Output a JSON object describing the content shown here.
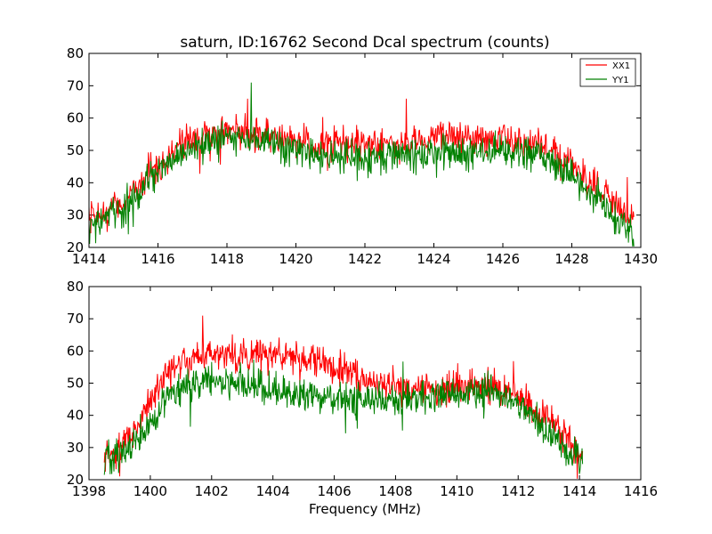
{
  "figure_title": "saturn, ID:16762 Second Dcal spectrum (counts)",
  "colors": {
    "XX1": "#ff0000",
    "YY1": "#008000"
  },
  "chart_data": [
    {
      "type": "line",
      "title": "saturn, ID:16762 Second Dcal spectrum (counts)",
      "xlabel": "",
      "ylabel": "",
      "xlim": [
        1414,
        1430
      ],
      "ylim": [
        20,
        80
      ],
      "xticks": [
        "1414",
        "1416",
        "1418",
        "1420",
        "1422",
        "1424",
        "1426",
        "1428",
        "1430"
      ],
      "yticks": [
        "20",
        "30",
        "40",
        "50",
        "60",
        "70",
        "80"
      ],
      "grid": false,
      "legend": {
        "position": "top-right",
        "entries": [
          "XX1",
          "YY1"
        ]
      },
      "series": [
        {
          "name": "XX1",
          "x_range": [
            1414.0,
            1429.8
          ],
          "mean_profile": [
            {
              "x": 1414.0,
              "y": 28
            },
            {
              "x": 1415.0,
              "y": 34
            },
            {
              "x": 1416.0,
              "y": 46
            },
            {
              "x": 1417.0,
              "y": 54
            },
            {
              "x": 1418.0,
              "y": 56
            },
            {
              "x": 1419.0,
              "y": 55
            },
            {
              "x": 1420.0,
              "y": 53
            },
            {
              "x": 1421.0,
              "y": 51
            },
            {
              "x": 1422.0,
              "y": 52
            },
            {
              "x": 1423.0,
              "y": 51
            },
            {
              "x": 1424.0,
              "y": 54
            },
            {
              "x": 1425.0,
              "y": 54
            },
            {
              "x": 1426.0,
              "y": 54
            },
            {
              "x": 1427.0,
              "y": 52
            },
            {
              "x": 1428.0,
              "y": 46
            },
            {
              "x": 1429.0,
              "y": 35
            },
            {
              "x": 1429.8,
              "y": 28
            }
          ],
          "noise_amplitude": 4,
          "peaks": [
            {
              "x": 1418.6,
              "y": 66
            },
            {
              "x": 1423.2,
              "y": 66
            }
          ]
        },
        {
          "name": "YY1",
          "x_range": [
            1414.0,
            1429.8
          ],
          "mean_profile": [
            {
              "x": 1414.0,
              "y": 26
            },
            {
              "x": 1415.0,
              "y": 32
            },
            {
              "x": 1416.0,
              "y": 44
            },
            {
              "x": 1417.0,
              "y": 51
            },
            {
              "x": 1418.0,
              "y": 54
            },
            {
              "x": 1419.0,
              "y": 53
            },
            {
              "x": 1420.0,
              "y": 50
            },
            {
              "x": 1421.0,
              "y": 48
            },
            {
              "x": 1422.0,
              "y": 48
            },
            {
              "x": 1423.0,
              "y": 48
            },
            {
              "x": 1424.0,
              "y": 49
            },
            {
              "x": 1425.0,
              "y": 49
            },
            {
              "x": 1426.0,
              "y": 50
            },
            {
              "x": 1427.0,
              "y": 49
            },
            {
              "x": 1428.0,
              "y": 42
            },
            {
              "x": 1429.0,
              "y": 32
            },
            {
              "x": 1429.8,
              "y": 24
            }
          ],
          "noise_amplitude": 4,
          "peaks": [
            {
              "x": 1418.7,
              "y": 71
            }
          ]
        }
      ]
    },
    {
      "type": "line",
      "title": "",
      "xlabel": "Frequency (MHz)",
      "ylabel": "",
      "xlim": [
        1398,
        1416
      ],
      "ylim": [
        20,
        80
      ],
      "xticks": [
        "1398",
        "1400",
        "1402",
        "1404",
        "1406",
        "1408",
        "1410",
        "1412",
        "1414",
        "1416"
      ],
      "yticks": [
        "20",
        "30",
        "40",
        "50",
        "60",
        "70",
        "80"
      ],
      "grid": false,
      "series": [
        {
          "name": "XX1",
          "x_range": [
            1398.5,
            1414.1
          ],
          "mean_profile": [
            {
              "x": 1398.5,
              "y": 27
            },
            {
              "x": 1399.0,
              "y": 30
            },
            {
              "x": 1399.5,
              "y": 35
            },
            {
              "x": 1400.0,
              "y": 44
            },
            {
              "x": 1400.5,
              "y": 53
            },
            {
              "x": 1401.0,
              "y": 57
            },
            {
              "x": 1402.0,
              "y": 59
            },
            {
              "x": 1403.0,
              "y": 59
            },
            {
              "x": 1404.0,
              "y": 59
            },
            {
              "x": 1405.0,
              "y": 58
            },
            {
              "x": 1406.0,
              "y": 55
            },
            {
              "x": 1407.0,
              "y": 52
            },
            {
              "x": 1408.0,
              "y": 49
            },
            {
              "x": 1409.0,
              "y": 48
            },
            {
              "x": 1410.0,
              "y": 49
            },
            {
              "x": 1411.0,
              "y": 49
            },
            {
              "x": 1412.0,
              "y": 46
            },
            {
              "x": 1412.5,
              "y": 42
            },
            {
              "x": 1413.0,
              "y": 38
            },
            {
              "x": 1413.5,
              "y": 33
            },
            {
              "x": 1414.1,
              "y": 28
            }
          ],
          "noise_amplitude": 4,
          "peaks": [
            {
              "x": 1401.7,
              "y": 71
            }
          ]
        },
        {
          "name": "YY1",
          "x_range": [
            1398.5,
            1414.1
          ],
          "mean_profile": [
            {
              "x": 1398.5,
              "y": 27
            },
            {
              "x": 1399.0,
              "y": 28
            },
            {
              "x": 1399.5,
              "y": 32
            },
            {
              "x": 1400.0,
              "y": 38
            },
            {
              "x": 1400.5,
              "y": 45
            },
            {
              "x": 1401.0,
              "y": 48
            },
            {
              "x": 1402.0,
              "y": 51
            },
            {
              "x": 1403.0,
              "y": 50
            },
            {
              "x": 1404.0,
              "y": 48
            },
            {
              "x": 1405.0,
              "y": 46
            },
            {
              "x": 1406.0,
              "y": 45
            },
            {
              "x": 1407.0,
              "y": 45
            },
            {
              "x": 1408.0,
              "y": 45
            },
            {
              "x": 1409.0,
              "y": 46
            },
            {
              "x": 1410.0,
              "y": 47
            },
            {
              "x": 1411.0,
              "y": 48
            },
            {
              "x": 1412.0,
              "y": 44
            },
            {
              "x": 1412.5,
              "y": 40
            },
            {
              "x": 1413.0,
              "y": 35
            },
            {
              "x": 1413.5,
              "y": 30
            },
            {
              "x": 1414.1,
              "y": 26
            }
          ],
          "noise_amplitude": 4,
          "peaks": []
        }
      ]
    }
  ]
}
